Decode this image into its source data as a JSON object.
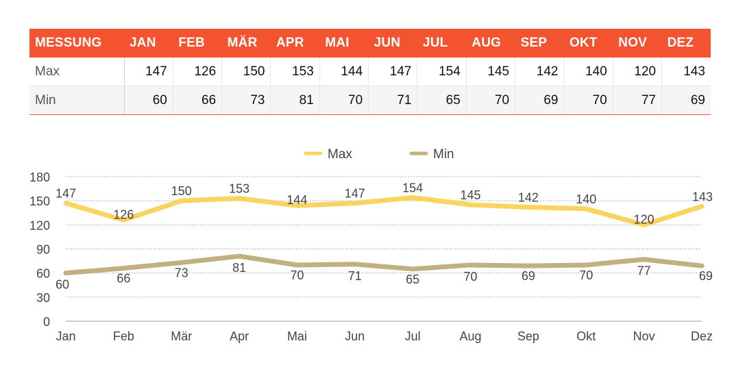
{
  "table": {
    "header": [
      "MESSUNG",
      "JAN",
      "FEB",
      "MÄR",
      "APR",
      "MAI",
      "JUN",
      "JUL",
      "AUG",
      "SEP",
      "OKT",
      "NOV",
      "DEZ"
    ],
    "rows": [
      {
        "label": "Max",
        "values": [
          "147",
          "126",
          "150",
          "153",
          "144",
          "147",
          "154",
          "145",
          "142",
          "140",
          "120",
          "143"
        ]
      },
      {
        "label": "Min",
        "values": [
          "60",
          "66",
          "73",
          "81",
          "70",
          "71",
          "65",
          "70",
          "69",
          "70",
          "77",
          "69"
        ]
      }
    ]
  },
  "chart_data": {
    "type": "line",
    "categories": [
      "Jan",
      "Feb",
      "Mär",
      "Apr",
      "Mai",
      "Jun",
      "Jul",
      "Aug",
      "Sep",
      "Okt",
      "Nov",
      "Dez"
    ],
    "series": [
      {
        "name": "Max",
        "values": [
          147,
          126,
          150,
          153,
          144,
          147,
          154,
          145,
          142,
          140,
          120,
          143
        ],
        "color": "#fad45e"
      },
      {
        "name": "Min",
        "values": [
          60,
          66,
          73,
          81,
          70,
          71,
          65,
          70,
          69,
          70,
          77,
          69
        ],
        "color": "#c2b07e"
      }
    ],
    "ylim": [
      0,
      180
    ],
    "yticks": [
      0,
      30,
      60,
      90,
      120,
      150,
      180
    ],
    "grid": true,
    "legend": "top-center",
    "title": "",
    "xlabel": "",
    "ylabel": ""
  },
  "colors": {
    "header_bg": "#f4532f",
    "axis": "#bbbbbb",
    "grid": "#999999",
    "label": "#444444"
  }
}
